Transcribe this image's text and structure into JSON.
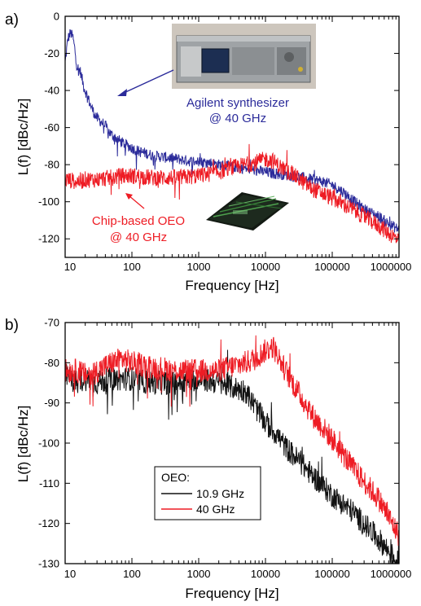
{
  "colors": {
    "blue": "#2b2b9a",
    "red": "#ee1c24",
    "black": "#111111"
  },
  "chart_data": [
    {
      "panel_label": "a)",
      "type": "line",
      "x_scale": "log",
      "xlim": [
        10,
        1000000
      ],
      "ylim": [
        -130,
        0
      ],
      "xlabel": "Frequency [Hz]",
      "ylabel": "L(f) [dBc/Hz]",
      "x_ticks": [
        "10",
        "100",
        "1000",
        "10000",
        "100000",
        "1000000"
      ],
      "y_ticks": [
        "0",
        "-20",
        "-40",
        "-60",
        "-80",
        "-100",
        "-120"
      ],
      "y_tick_values": [
        0,
        -20,
        -40,
        -60,
        -80,
        -100,
        -120
      ],
      "series": [
        {
          "color": "blue",
          "x": [
            10,
            11,
            12,
            13,
            14,
            15,
            17,
            19,
            21,
            24,
            27,
            30,
            35,
            40,
            45,
            50,
            60,
            70,
            80,
            100,
            130,
            170,
            200,
            300,
            500,
            700,
            1000,
            1500,
            2000,
            3000,
            5000,
            7000,
            10000,
            15000,
            20000,
            30000,
            50000,
            70000,
            100000,
            150000,
            200000,
            300000,
            500000,
            700000,
            1000000
          ],
          "y": [
            -25,
            -12,
            -9,
            -11,
            -18,
            -27,
            -30,
            -38,
            -42,
            -48,
            -52,
            -55,
            -57,
            -59,
            -62,
            -64,
            -66,
            -68,
            -69,
            -71,
            -73,
            -74,
            -75,
            -76,
            -77,
            -78,
            -78.5,
            -79,
            -80,
            -81,
            -82,
            -83,
            -84,
            -85,
            -85.5,
            -86.5,
            -88,
            -89,
            -91,
            -95,
            -99,
            -104,
            -108,
            -112,
            -115
          ],
          "noise_amplitude": 3
        },
        {
          "color": "red",
          "x": [
            10,
            15,
            20,
            30,
            50,
            70,
            100,
            200,
            500,
            1000,
            2000,
            3000,
            5000,
            7000,
            10000,
            13000,
            15000,
            20000,
            30000,
            50000,
            100000,
            200000,
            500000,
            1000000
          ],
          "y": [
            -88,
            -89,
            -88,
            -88,
            -87,
            -86,
            -86,
            -87,
            -87,
            -86,
            -84,
            -82,
            -80,
            -79,
            -77,
            -78,
            -80,
            -83,
            -87,
            -93,
            -98,
            -104,
            -113,
            -121
          ],
          "noise_amplitude": 4.5
        }
      ],
      "annotations": [
        {
          "text": "Agilent synthesizer",
          "color": "blue"
        },
        {
          "text": "@ 40 GHz",
          "color": "blue"
        },
        {
          "text": "Chip-based OEO",
          "color": "red"
        },
        {
          "text": "@ 40 GHz",
          "color": "red"
        }
      ]
    },
    {
      "panel_label": "b)",
      "type": "line",
      "x_scale": "log",
      "xlim": [
        10,
        1000000
      ],
      "ylim": [
        -130,
        -70
      ],
      "xlabel": "Frequency [Hz]",
      "ylabel": "L(f) [dBc/Hz]",
      "x_ticks": [
        "10",
        "100",
        "1000",
        "10000",
        "100000",
        "1000000"
      ],
      "y_ticks": [
        "-70",
        "-80",
        "-90",
        "-100",
        "-110",
        "-120",
        "-130"
      ],
      "y_tick_values": [
        -70,
        -80,
        -90,
        -100,
        -110,
        -120,
        -130
      ],
      "legend": {
        "title": "OEO:",
        "position": "lower-left",
        "entries": [
          "10.9 GHz",
          "40 GHz"
        ]
      },
      "series": [
        {
          "name": "10.9 GHz",
          "color": "black",
          "x": [
            10,
            15,
            20,
            30,
            50,
            70,
            100,
            200,
            500,
            1000,
            2000,
            3000,
            5000,
            7000,
            10000,
            15000,
            20000,
            30000,
            50000,
            100000,
            200000,
            500000,
            1000000
          ],
          "y": [
            -83,
            -85,
            -84,
            -85,
            -84,
            -84,
            -84,
            -85,
            -85,
            -84,
            -85,
            -86,
            -87,
            -91,
            -95,
            -98,
            -101,
            -104,
            -108,
            -113,
            -117,
            -124,
            -130
          ],
          "noise_amplitude": 3
        },
        {
          "name": "40 GHz",
          "color": "red",
          "x": [
            10,
            15,
            20,
            30,
            50,
            70,
            100,
            200,
            500,
            1000,
            2000,
            3000,
            5000,
            7000,
            10000,
            13000,
            15000,
            20000,
            30000,
            50000,
            100000,
            200000,
            500000,
            1000000
          ],
          "y": [
            -82,
            -82,
            -83,
            -82,
            -80,
            -79,
            -80,
            -81,
            -82,
            -82,
            -82,
            -81,
            -80,
            -79,
            -77,
            -76,
            -78,
            -82,
            -87,
            -93,
            -99,
            -106,
            -114,
            -123
          ],
          "noise_amplitude": 3
        }
      ]
    }
  ]
}
